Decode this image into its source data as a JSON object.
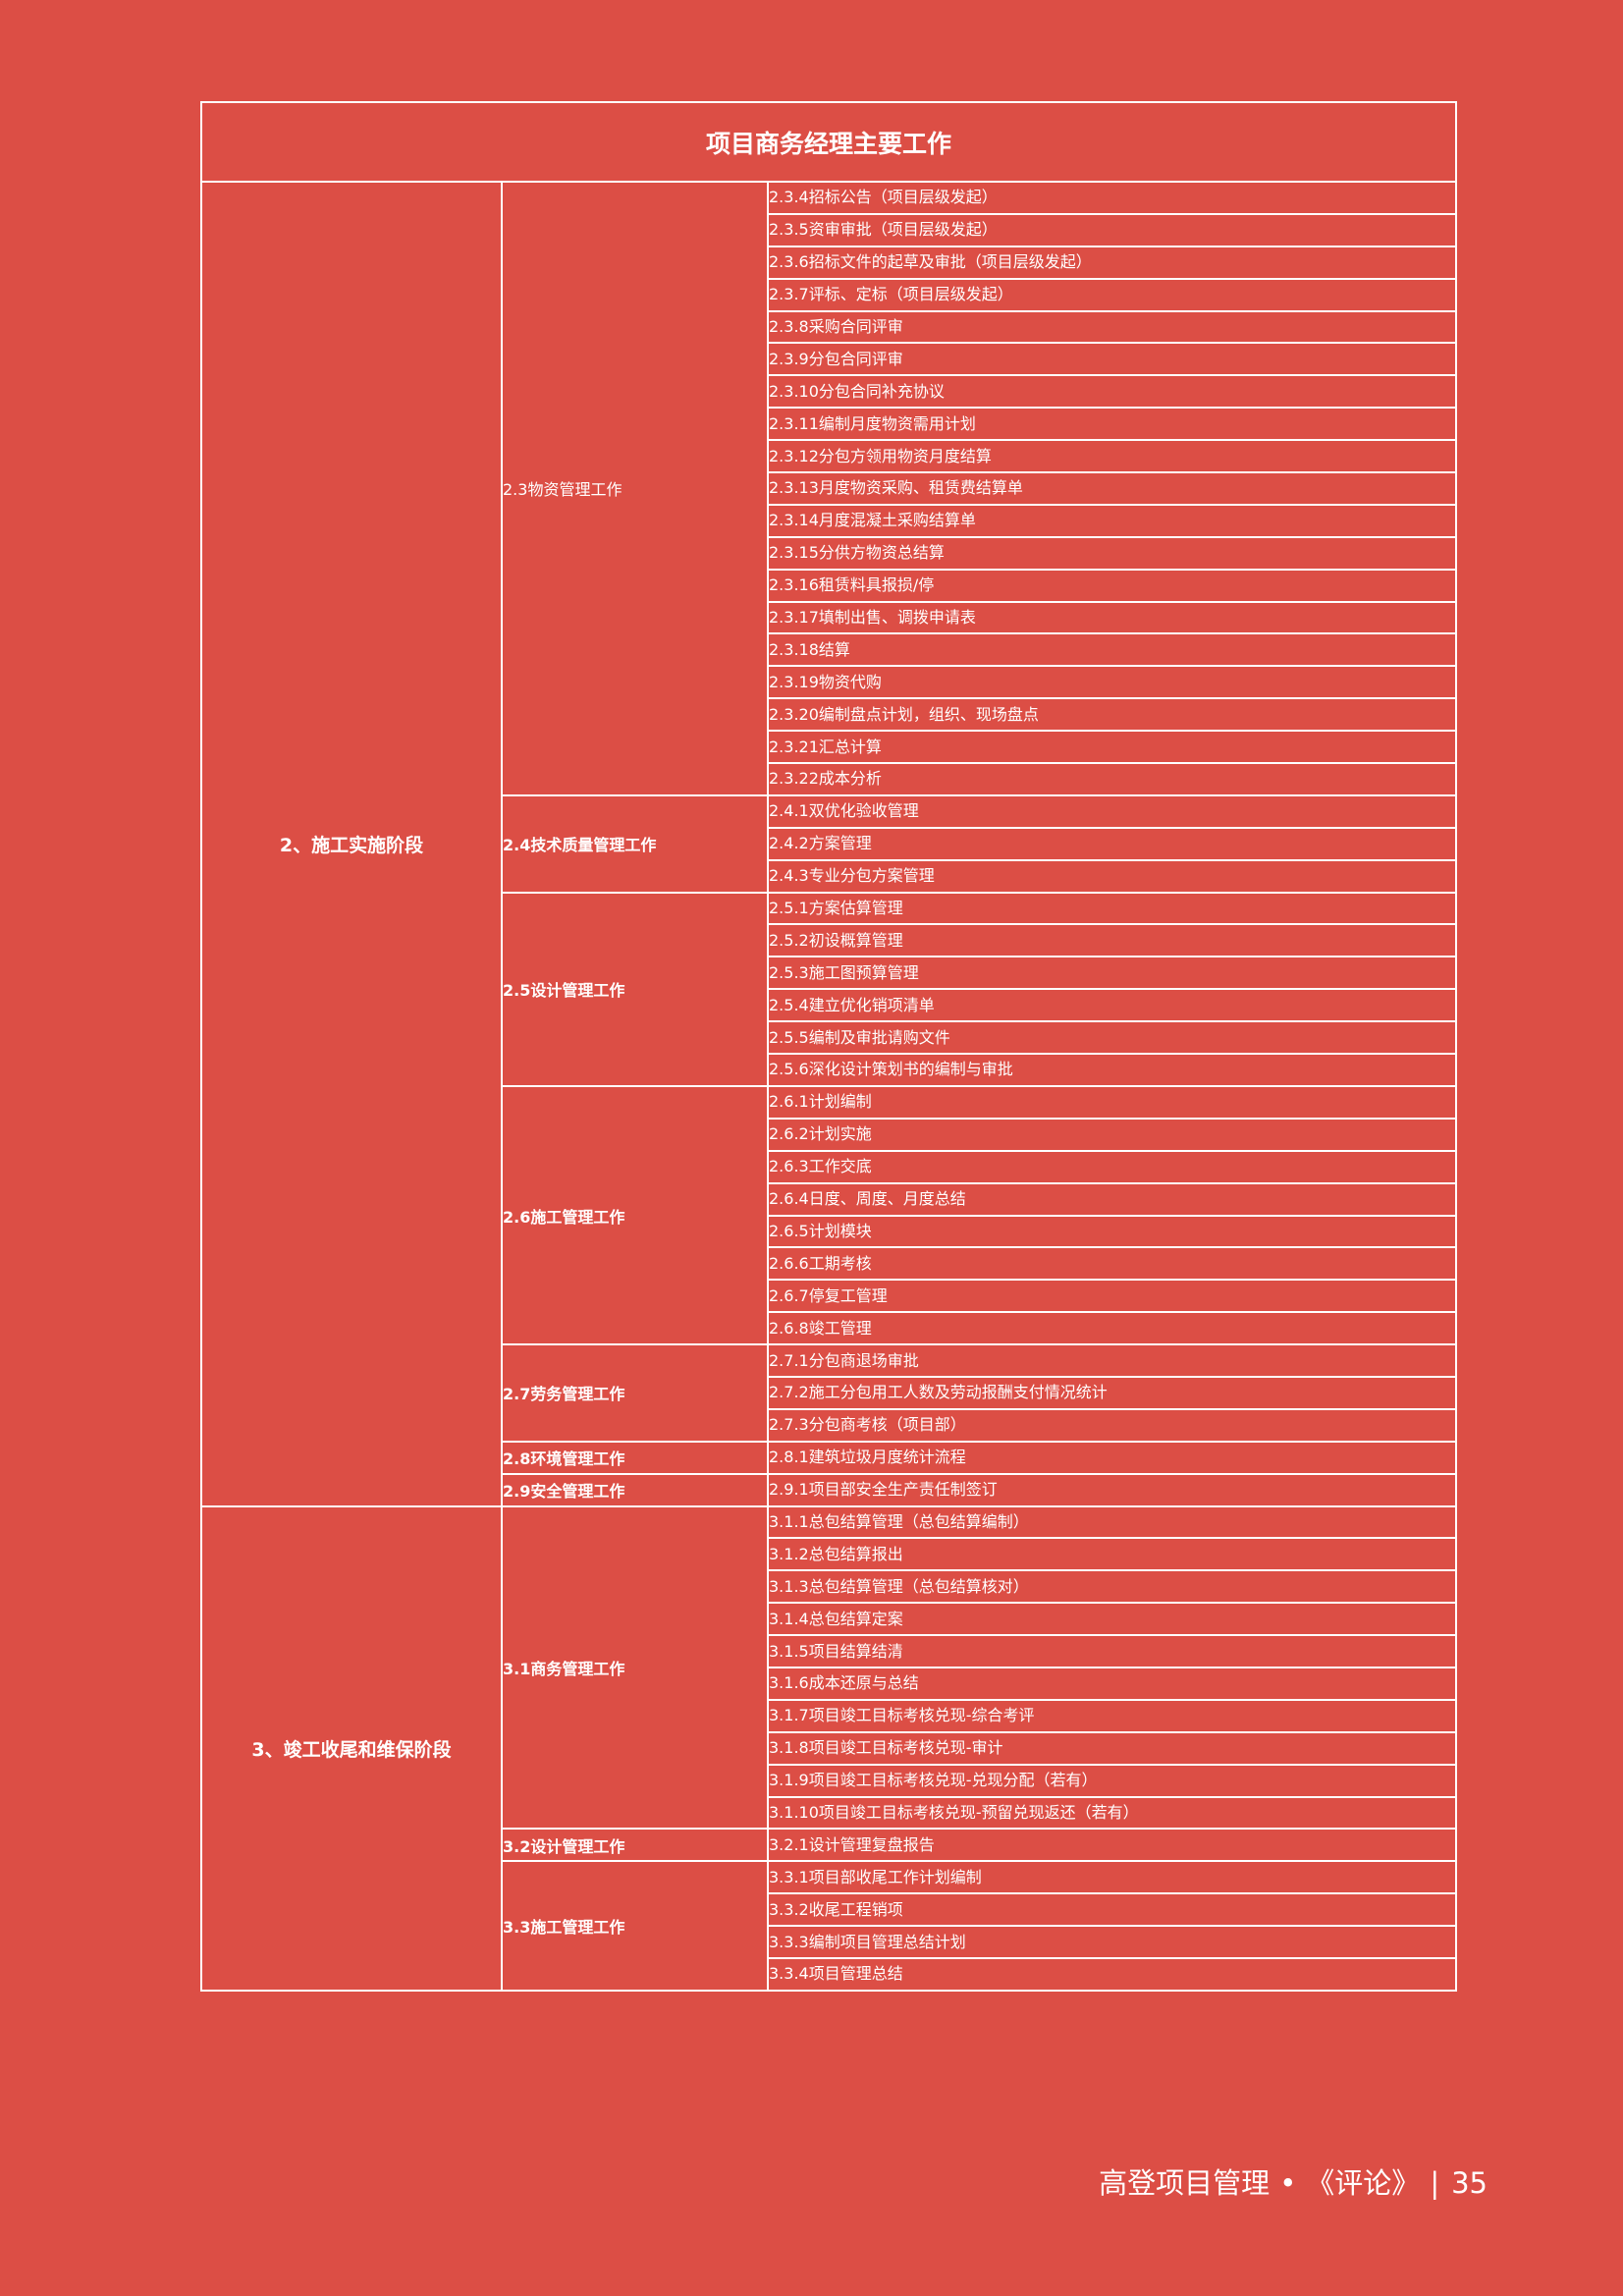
{
  "table": {
    "title": "项目商务经理主要工作",
    "stages": [
      {
        "label": "2、施工实施阶段",
        "categories": [
          {
            "label": "2.3物资管理工作",
            "bold": false,
            "items": [
              "2.3.4招标公告（项目层级发起）",
              "2.3.5资审审批（项目层级发起）",
              "2.3.6招标文件的起草及审批（项目层级发起）",
              "2.3.7评标、定标（项目层级发起）",
              "2.3.8采购合同评审",
              "2.3.9分包合同评审",
              "2.3.10分包合同补充协议",
              "2.3.11编制月度物资需用计划",
              "2.3.12分包方领用物资月度结算",
              "2.3.13月度物资采购、租赁费结算单",
              "2.3.14月度混凝土采购结算单",
              "2.3.15分供方物资总结算",
              "2.3.16租赁料具报损/停",
              "2.3.17填制出售、调拨申请表",
              "2.3.18结算",
              "2.3.19物资代购",
              "2.3.20编制盘点计划，组织、现场盘点",
              "2.3.21汇总计算",
              "2.3.22成本分析"
            ]
          },
          {
            "label": "2.4技术质量管理工作",
            "bold": true,
            "items": [
              "2.4.1双优化验收管理",
              "2.4.2方案管理",
              "2.4.3专业分包方案管理"
            ]
          },
          {
            "label": "2.5设计管理工作",
            "bold": true,
            "items": [
              "2.5.1方案估算管理",
              "2.5.2初设概算管理",
              "2.5.3施工图预算管理",
              "2.5.4建立优化销项清单",
              "2.5.5编制及审批请购文件",
              "2.5.6深化设计策划书的编制与审批"
            ]
          },
          {
            "label": "2.6施工管理工作",
            "bold": true,
            "items": [
              "2.6.1计划编制",
              "2.6.2计划实施",
              "2.6.3工作交底",
              "2.6.4日度、周度、月度总结",
              "2.6.5计划模块",
              "2.6.6工期考核",
              "2.6.7停复工管理",
              "2.6.8竣工管理"
            ]
          },
          {
            "label": "2.7劳务管理工作",
            "bold": true,
            "items": [
              "2.7.1分包商退场审批",
              "2.7.2施工分包用工人数及劳动报酬支付情况统计",
              "2.7.3分包商考核（项目部）"
            ]
          },
          {
            "label": "2.8环境管理工作",
            "bold": true,
            "items": [
              "2.8.1建筑垃圾月度统计流程"
            ]
          },
          {
            "label": "2.9安全管理工作",
            "bold": true,
            "items": [
              "2.9.1项目部安全生产责任制签订"
            ]
          }
        ]
      },
      {
        "label": "3、竣工收尾和维保阶段",
        "categories": [
          {
            "label": "3.1商务管理工作",
            "bold": true,
            "items": [
              "3.1.1总包结算管理（总包结算编制）",
              "3.1.2总包结算报出",
              "3.1.3总包结算管理（总包结算核对）",
              "3.1.4总包结算定案",
              "3.1.5项目结算结清",
              "3.1.6成本还原与总结",
              "3.1.7项目竣工目标考核兑现-综合考评",
              "3.1.8项目竣工目标考核兑现-审计",
              "3.1.9项目竣工目标考核兑现-兑现分配（若有）",
              "3.1.10项目竣工目标考核兑现-预留兑现返还（若有）"
            ]
          },
          {
            "label": "3.2设计管理工作",
            "bold": true,
            "items": [
              "3.2.1设计管理复盘报告"
            ]
          },
          {
            "label": "3.3施工管理工作",
            "bold": true,
            "items": [
              "3.3.1项目部收尾工作计划编制",
              "3.3.2收尾工程销项",
              "3.3.3编制项目管理总结计划",
              "3.3.4项目管理总结"
            ]
          }
        ]
      }
    ]
  },
  "footer": {
    "publication": "高登项目管理",
    "bullet": "•",
    "section": "《评论》",
    "divider": "|",
    "page_number": "35"
  },
  "colors": {
    "background": "#dc4e45",
    "text": "#ffffff",
    "grid_lines": "#ffffff"
  }
}
